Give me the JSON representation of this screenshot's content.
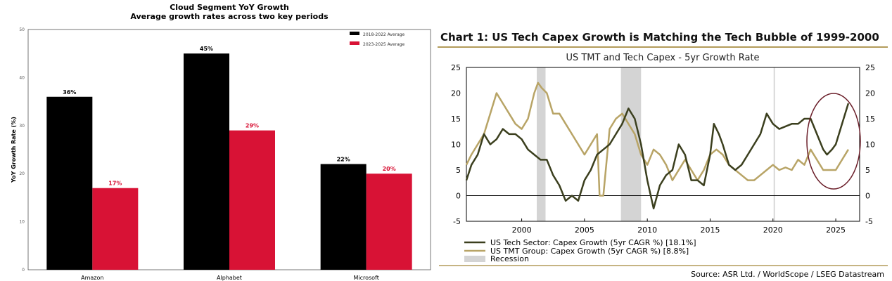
{
  "chart_data": [
    {
      "type": "bar",
      "title": "Cloud Segment YoY Growth",
      "subtitle": "Average growth rates across two key periods",
      "ylabel": "YoY Growth Rate (%)",
      "xlabel": "",
      "ylim": [
        0,
        50
      ],
      "yticks": [
        0,
        10,
        20,
        30,
        40,
        50
      ],
      "categories": [
        "Amazon",
        "Alphabet",
        "Microsoft"
      ],
      "series": [
        {
          "name": "2018-2022 Average",
          "color": "#000000",
          "values": [
            36,
            45,
            22
          ],
          "labels": [
            "36%",
            "45%",
            "22%"
          ]
        },
        {
          "name": "2023-2025 Average",
          "color": "#d81235",
          "values": [
            17,
            29,
            20
          ],
          "labels": [
            "17%",
            "29%",
            "20%"
          ]
        }
      ],
      "legend": "top-right"
    },
    {
      "type": "line",
      "title": "Chart 1: US Tech Capex Growth is Matching the Tech Bubble of 1999-2000",
      "subtitle": "US TMT and Tech Capex - 5yr Growth Rate",
      "xlim": [
        1995.6,
        2026.9
      ],
      "ylim": [
        -5,
        25
      ],
      "xticks": [
        2000,
        2005,
        2010,
        2015,
        2020,
        2025
      ],
      "yticks": [
        -5,
        0,
        5,
        10,
        15,
        20,
        25
      ],
      "recessions": [
        [
          2001.2,
          2001.9
        ],
        [
          2007.9,
          2009.5
        ]
      ],
      "recession_label": "Recession",
      "series": [
        {
          "name": "US Tech Sector: Capex Growth (5yr CAGR %) [18.1%]",
          "color": "#3b3f1e",
          "x": [
            1995.6,
            1996,
            1996.5,
            1997,
            1997.5,
            1998,
            1998.5,
            1999,
            1999.5,
            2000,
            2000.5,
            2001,
            2001.5,
            2002,
            2002.5,
            2003,
            2003.5,
            2004,
            2004.5,
            2005,
            2005.5,
            2006,
            2006.5,
            2007,
            2007.5,
            2008,
            2008.5,
            2009,
            2009.5,
            2010,
            2010.5,
            2011,
            2011.5,
            2012,
            2012.5,
            2013,
            2013.5,
            2014,
            2014.5,
            2015,
            2015.3,
            2015.7,
            2016,
            2016.5,
            2017,
            2017.5,
            2018,
            2018.5,
            2019,
            2019.5,
            2020,
            2020.5,
            2021,
            2021.5,
            2022,
            2022.5,
            2023,
            2023.5,
            2024,
            2024.3,
            2024.7,
            2025,
            2025.5,
            2026
          ],
          "y": [
            3,
            6,
            8,
            12,
            10,
            11,
            13,
            12,
            12,
            11,
            9,
            8,
            7,
            7,
            4,
            2,
            -1,
            0,
            -1,
            3,
            5,
            8,
            9,
            10,
            12,
            14,
            17,
            15,
            10,
            3,
            -2.5,
            2,
            4,
            5,
            10,
            8,
            3,
            3,
            2,
            8,
            14,
            12,
            10,
            6,
            5,
            6,
            8,
            10,
            12,
            16,
            14,
            13,
            13.5,
            14,
            14,
            15,
            15,
            12,
            9,
            8,
            9,
            10,
            14,
            18
          ]
        },
        {
          "name": "US TMT Group: Capex Growth (5yr CAGR %) [8.8%]",
          "color": "#b8a466",
          "x": [
            1995.6,
            1996,
            1996.5,
            1997,
            1997.5,
            1998,
            1998.5,
            1999,
            1999.5,
            2000,
            2000.5,
            2001,
            2001.3,
            2001.6,
            2002,
            2002.5,
            2003,
            2003.5,
            2004,
            2004.5,
            2005,
            2005.5,
            2006,
            2006.2,
            2006.5,
            2007,
            2007.5,
            2008,
            2008.5,
            2009,
            2009.5,
            2010,
            2010.5,
            2011,
            2011.5,
            2012,
            2012.5,
            2013,
            2013.5,
            2014,
            2014.5,
            2015,
            2015.5,
            2016,
            2016.5,
            2017,
            2017.5,
            2018,
            2018.5,
            2019,
            2019.5,
            2020,
            2020.5,
            2021,
            2021.5,
            2022,
            2022.5,
            2023,
            2023.5,
            2024,
            2024.5,
            2025,
            2025.5,
            2026
          ],
          "y": [
            6,
            8,
            10,
            12,
            16,
            20,
            18,
            16,
            14,
            13,
            15,
            20,
            22,
            21,
            20,
            16,
            16,
            14,
            12,
            10,
            8,
            10,
            12,
            0,
            0,
            13,
            15,
            16,
            14,
            12,
            8,
            6,
            9,
            8,
            6,
            3,
            5,
            7,
            5,
            3,
            5,
            8,
            9,
            8,
            6,
            5,
            4,
            3,
            3,
            4,
            5,
            6,
            5,
            5.5,
            5,
            7,
            6,
            9,
            7,
            5,
            5,
            5,
            7,
            9
          ]
        }
      ],
      "source": "Source: ASR Ltd. / WorldScope / LSEG Datastream",
      "legend": "bottom-left"
    }
  ]
}
